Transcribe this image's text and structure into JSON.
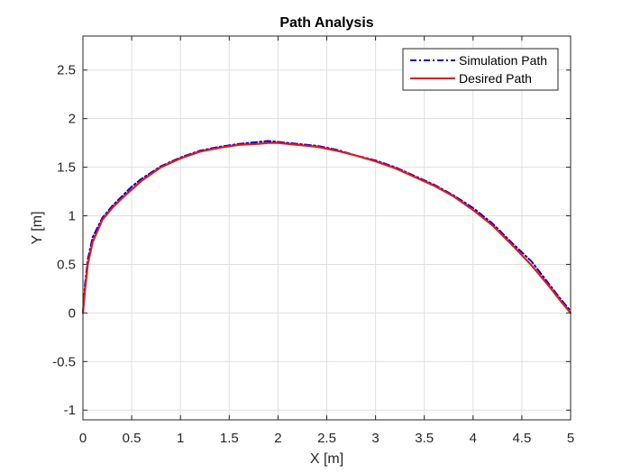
{
  "chart_data": {
    "type": "line",
    "title": "Path Analysis",
    "xlabel": "X [m]",
    "ylabel": "Y [m]",
    "xlim": [
      0,
      5
    ],
    "ylim": [
      -1.1,
      2.85
    ],
    "xticks": [
      0,
      0.5,
      1,
      1.5,
      2,
      2.5,
      3,
      3.5,
      4,
      4.5,
      5
    ],
    "xtick_labels": [
      "0",
      "0.5",
      "1",
      "1.5",
      "2",
      "2.5",
      "3",
      "3.5",
      "4",
      "4.5",
      "5"
    ],
    "yticks": [
      -1,
      -0.5,
      0,
      0.5,
      1,
      1.5,
      2,
      2.5
    ],
    "ytick_labels": [
      "-1",
      "-0.5",
      "0",
      "0.5",
      "1",
      "1.5",
      "2",
      "2.5"
    ],
    "grid": true,
    "legend_position": "top-right",
    "series": [
      {
        "name": "Simulation Path",
        "color": "#0000cc",
        "line_style": "dash-dot",
        "x": [
          0,
          0.02,
          0.05,
          0.1,
          0.2,
          0.3,
          0.4,
          0.5,
          0.6,
          0.8,
          1.0,
          1.2,
          1.4,
          1.6,
          1.8,
          1.9,
          2.0,
          2.2,
          2.4,
          2.6,
          2.8,
          3.0,
          3.2,
          3.4,
          3.6,
          3.8,
          4.0,
          4.2,
          4.4,
          4.6,
          4.8,
          4.9,
          5.0
        ],
        "y": [
          0,
          0.28,
          0.55,
          0.78,
          0.98,
          1.1,
          1.2,
          1.3,
          1.38,
          1.51,
          1.6,
          1.67,
          1.71,
          1.74,
          1.76,
          1.77,
          1.76,
          1.74,
          1.72,
          1.68,
          1.62,
          1.57,
          1.5,
          1.41,
          1.32,
          1.21,
          1.08,
          0.92,
          0.72,
          0.53,
          0.27,
          0.14,
          0.02
        ]
      },
      {
        "name": "Desired Path",
        "color": "#e31a1c",
        "line_style": "solid",
        "x": [
          0,
          0.02,
          0.05,
          0.1,
          0.2,
          0.3,
          0.4,
          0.5,
          0.6,
          0.8,
          1.0,
          1.2,
          1.4,
          1.6,
          1.8,
          1.9,
          2.0,
          2.2,
          2.4,
          2.6,
          2.8,
          3.0,
          3.2,
          3.4,
          3.6,
          3.8,
          4.0,
          4.2,
          4.4,
          4.6,
          4.8,
          4.9,
          5.0
        ],
        "y": [
          0,
          0.22,
          0.5,
          0.73,
          0.96,
          1.08,
          1.18,
          1.27,
          1.36,
          1.5,
          1.59,
          1.66,
          1.7,
          1.73,
          1.74,
          1.75,
          1.75,
          1.73,
          1.71,
          1.67,
          1.62,
          1.56,
          1.49,
          1.4,
          1.31,
          1.2,
          1.06,
          0.9,
          0.7,
          0.49,
          0.25,
          0.12,
          0.0
        ]
      }
    ]
  }
}
